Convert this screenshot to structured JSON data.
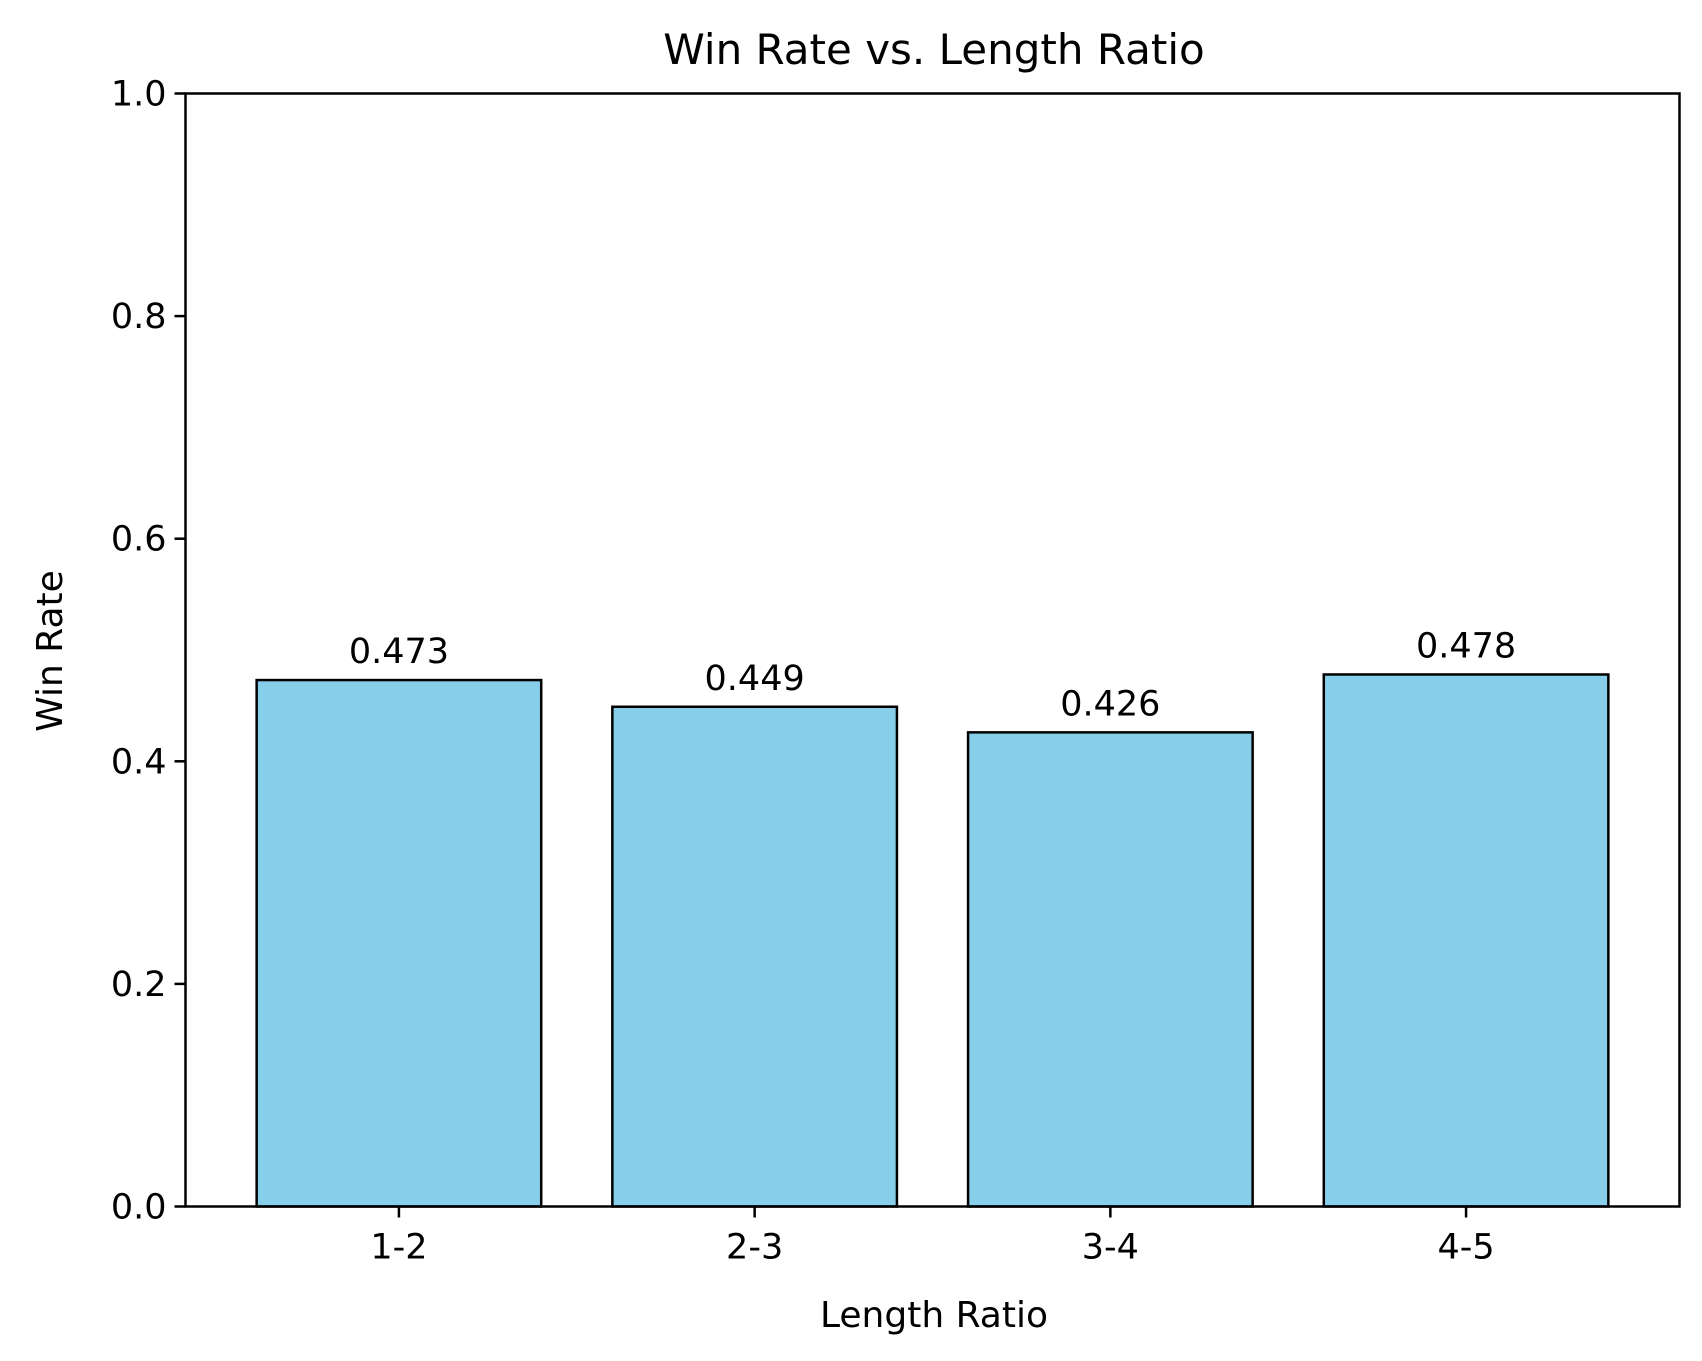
{
  "chart_data": {
    "type": "bar",
    "title": "Win Rate vs. Length Ratio",
    "xlabel": "Length Ratio",
    "ylabel": "Win Rate",
    "categories": [
      "1-2",
      "2-3",
      "3-4",
      "4-5"
    ],
    "values": [
      0.473,
      0.449,
      0.426,
      0.478
    ],
    "value_labels": [
      "0.473",
      "0.449",
      "0.426",
      "0.478"
    ],
    "ylim": [
      0,
      1.0
    ],
    "yticks": [
      0.0,
      0.2,
      0.4,
      0.6,
      0.8,
      1.0
    ],
    "ytick_labels": [
      "0.0",
      "0.2",
      "0.4",
      "0.6",
      "0.8",
      "1.0"
    ],
    "grid": false,
    "bar_color": "#87CEEB",
    "edge_color": "#000000"
  }
}
